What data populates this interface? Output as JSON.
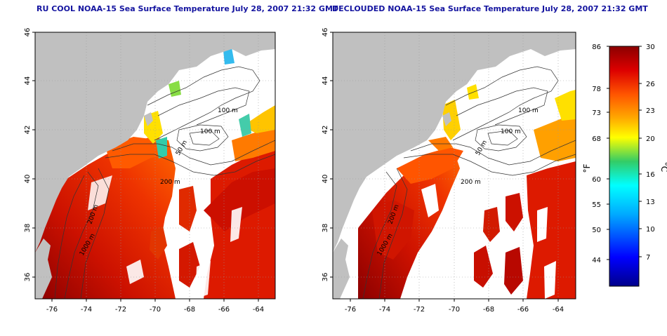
{
  "panels": [
    {
      "title": "RU COOL NOAA-15 Sea Surface Temperature July 28, 2007 21:32 GMT",
      "x_ticks": [
        "-76",
        "-74",
        "-72",
        "-70",
        "-68",
        "-66",
        "-64"
      ],
      "y_ticks": [
        "46",
        "44",
        "42",
        "40",
        "38",
        "36"
      ],
      "contour_labels": [
        "100 m",
        "100 m",
        "50 m",
        "200 m",
        "200 m",
        "1000 m"
      ]
    },
    {
      "title": "DECLOUDED NOAA-15 Sea Surface Temperature July 28, 2007 21:32 GMT",
      "x_ticks": [
        "-76",
        "-74",
        "-72",
        "-70",
        "-68",
        "-66",
        "-64"
      ],
      "y_ticks": [
        "46",
        "44",
        "42",
        "40",
        "38",
        "36"
      ],
      "contour_labels": [
        "100 m",
        "100 m",
        "50 m",
        "200 m",
        "200 m",
        "1000 m"
      ]
    }
  ],
  "colorbar": {
    "f_unit": "°F",
    "c_unit": "°C",
    "f_ticks": [
      "86",
      "78",
      "73",
      "68",
      "60",
      "55",
      "50",
      "44"
    ],
    "c_ticks": [
      "30",
      "26",
      "23",
      "20",
      "16",
      "13",
      "10",
      "7"
    ],
    "colors": [
      "#00008b",
      "#0000ff",
      "#00aaff",
      "#00ffff",
      "#33cc66",
      "#ffff00",
      "#ffaa00",
      "#ff5500",
      "#dd0000",
      "#8b0000"
    ]
  },
  "colors": {
    "land": "#c0c0c0",
    "cloud": "#ffffff",
    "title": "#1515a0"
  }
}
